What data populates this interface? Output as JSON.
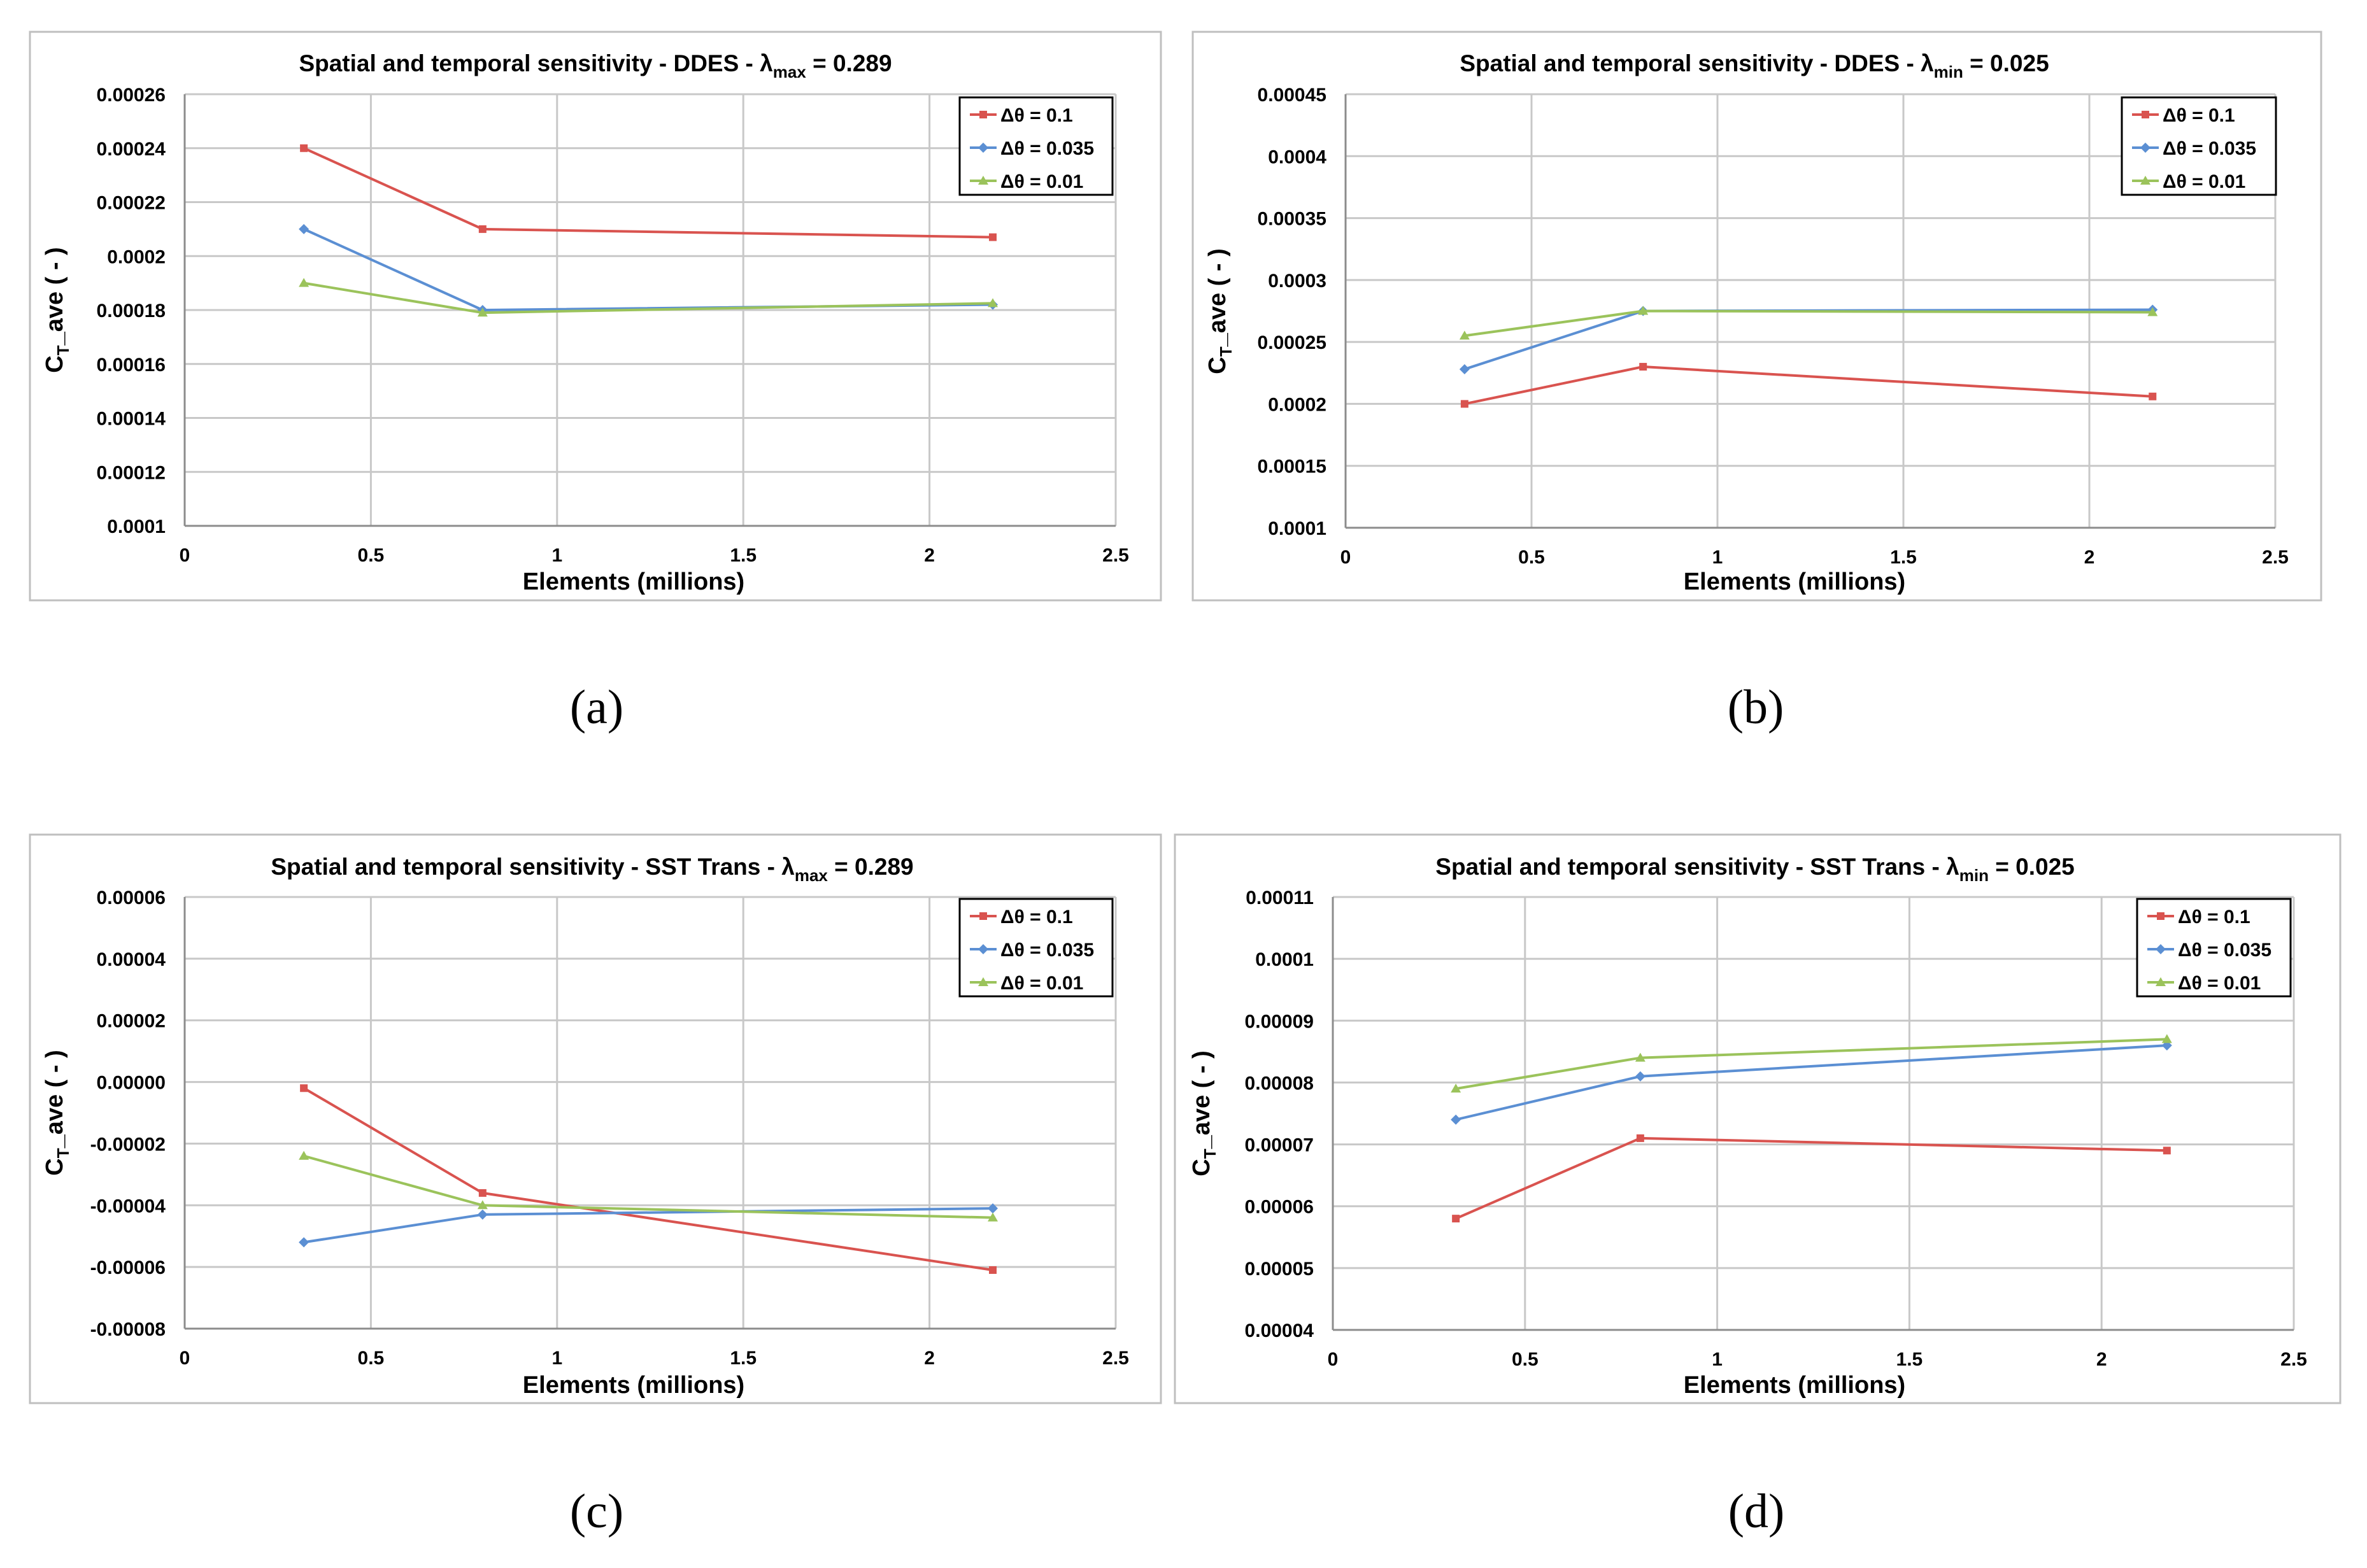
{
  "chart_data": [
    {
      "type": "line",
      "panel_label": "(a)",
      "title": {
        "prefix": "Spatial and temporal sensitivity - DDES - λ",
        "sub": "max",
        "suffix": " = 0.289"
      },
      "xlabel": "Elements (millions)",
      "ylabel": {
        "main": "C",
        "sub": "T",
        "rest": "_ave ( - )"
      },
      "xlim": [
        0,
        2.5
      ],
      "xticks": [
        "0",
        "0.5",
        "1",
        "1.5",
        "2",
        "2.5"
      ],
      "ylim": [
        0.0001,
        0.00026
      ],
      "yticks": [
        "0.0001",
        "0.00012",
        "0.00014",
        "0.00016",
        "0.00018",
        "0.0002",
        "0.00022",
        "0.00024",
        "0.00026"
      ],
      "x": [
        0.32,
        0.8,
        2.17
      ],
      "series": [
        {
          "name": "Δθ = 0.1",
          "values": [
            0.00024,
            0.00021,
            0.000207
          ]
        },
        {
          "name": "Δθ = 0.035",
          "values": [
            0.00021,
            0.00018,
            0.000182
          ]
        },
        {
          "name": "Δθ = 0.01",
          "values": [
            0.00019,
            0.000179,
            0.0001825
          ]
        }
      ]
    },
    {
      "type": "line",
      "panel_label": "(b)",
      "title": {
        "prefix": "Spatial and temporal sensitivity - DDES - λ",
        "sub": "min",
        "suffix": " = 0.025"
      },
      "xlabel": "Elements (millions)",
      "ylabel": {
        "main": "C",
        "sub": "T",
        "rest": "_ave ( - )"
      },
      "xlim": [
        0,
        2.5
      ],
      "xticks": [
        "0",
        "0.5",
        "1",
        "1.5",
        "2",
        "2.5"
      ],
      "ylim": [
        0.0001,
        0.00045
      ],
      "yticks": [
        "0.0001",
        "0.00015",
        "0.0002",
        "0.00025",
        "0.0003",
        "0.00035",
        "0.0004",
        "0.00045"
      ],
      "x": [
        0.32,
        0.8,
        2.17
      ],
      "series": [
        {
          "name": "Δθ = 0.1",
          "values": [
            0.0002,
            0.00023,
            0.000206
          ]
        },
        {
          "name": "Δθ = 0.035",
          "values": [
            0.000228,
            0.000275,
            0.000276
          ]
        },
        {
          "name": "Δθ = 0.01",
          "values": [
            0.000255,
            0.000275,
            0.000274
          ]
        }
      ]
    },
    {
      "type": "line",
      "panel_label": "(c)",
      "title": {
        "prefix": "Spatial and temporal sensitivity - SST Trans - λ",
        "sub": "max",
        "suffix": " = 0.289"
      },
      "xlabel": "Elements (millions)",
      "ylabel": {
        "main": "C",
        "sub": "T",
        "rest": "_ave ( - )"
      },
      "xlim": [
        0,
        2.5
      ],
      "xticks": [
        "0",
        "0.5",
        "1",
        "1.5",
        "2",
        "2.5"
      ],
      "ylim": [
        -8e-05,
        6e-05
      ],
      "yticks": [
        "-0.00008",
        "-0.00006",
        "-0.00004",
        "-0.00002",
        "0.00000",
        "0.00002",
        "0.00004",
        "0.00006"
      ],
      "x": [
        0.32,
        0.8,
        2.17
      ],
      "series": [
        {
          "name": "Δθ = 0.1",
          "values": [
            -2e-06,
            -3.6e-05,
            -6.1e-05
          ]
        },
        {
          "name": "Δθ = 0.035",
          "values": [
            -5.2e-05,
            -4.3e-05,
            -4.1e-05
          ]
        },
        {
          "name": "Δθ = 0.01",
          "values": [
            -2.4e-05,
            -4e-05,
            -4.4e-05
          ]
        }
      ]
    },
    {
      "type": "line",
      "panel_label": "(d)",
      "title": {
        "prefix": "Spatial and temporal sensitivity - SST Trans - λ",
        "sub": "min",
        "suffix": " = 0.025"
      },
      "xlabel": "Elements (millions)",
      "ylabel": {
        "main": "C",
        "sub": "T",
        "rest": "_ave ( - )"
      },
      "xlim": [
        0,
        2.5
      ],
      "xticks": [
        "0",
        "0.5",
        "1",
        "1.5",
        "2",
        "2.5"
      ],
      "ylim": [
        4e-05,
        0.00011
      ],
      "yticks": [
        "0.00004",
        "0.00005",
        "0.00006",
        "0.00007",
        "0.00008",
        "0.00009",
        "0.0001",
        "0.00011"
      ],
      "x": [
        0.32,
        0.8,
        2.17
      ],
      "series": [
        {
          "name": "Δθ = 0.1",
          "values": [
            5.8e-05,
            7.1e-05,
            6.9e-05
          ]
        },
        {
          "name": "Δθ = 0.035",
          "values": [
            7.4e-05,
            8.1e-05,
            8.6e-05
          ]
        },
        {
          "name": "Δθ = 0.01",
          "values": [
            7.9e-05,
            8.4e-05,
            8.7e-05
          ]
        }
      ]
    }
  ],
  "colors": {
    "series": [
      "#d9534f",
      "#5b8fd3",
      "#9bc35b"
    ],
    "grid": "#c8c8c8",
    "frame": "#bfbfbf",
    "text": "#000000"
  }
}
